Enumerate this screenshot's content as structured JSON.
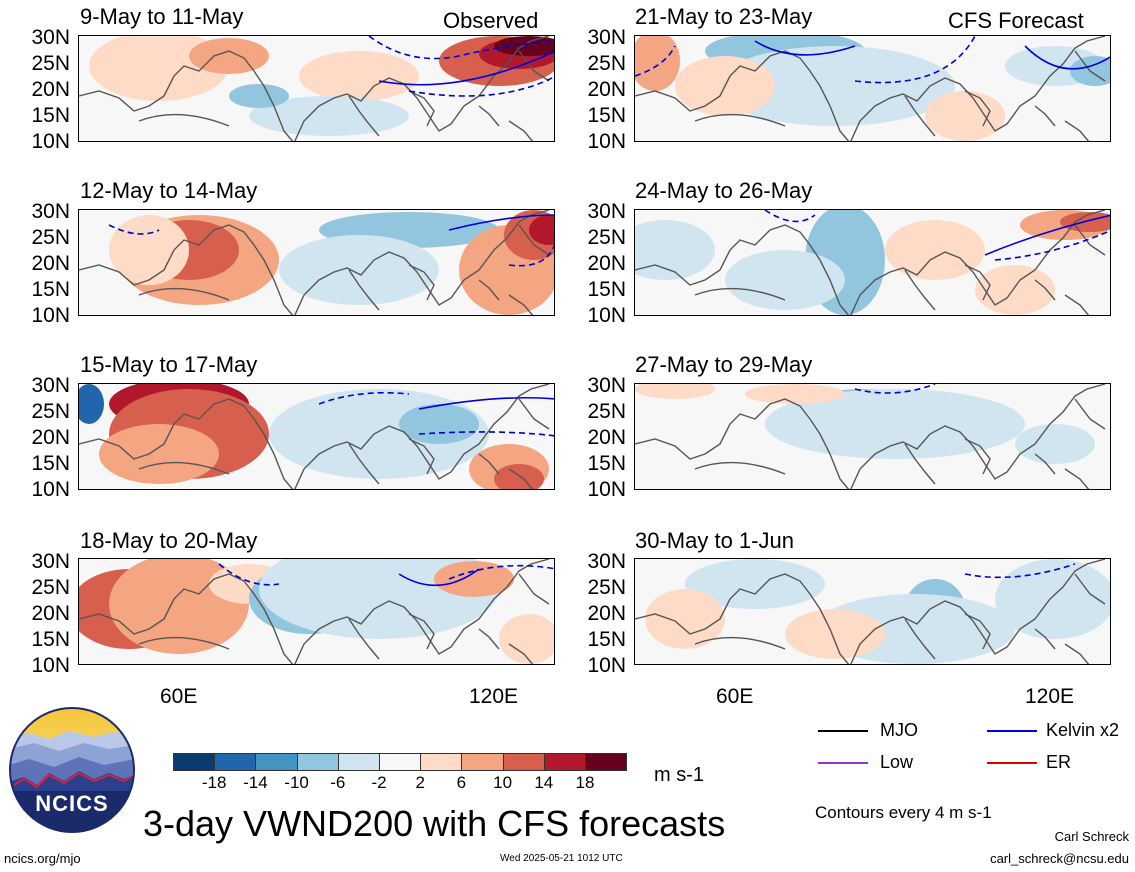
{
  "labels": {
    "observed": "Observed",
    "forecast": "CFS Forecast"
  },
  "lat_labels": [
    "30N",
    "25N",
    "20N",
    "15N",
    "10N"
  ],
  "lon_labels": [
    "60E",
    "120E"
  ],
  "panels": {
    "left": [
      {
        "title": "9-May to 11-May"
      },
      {
        "title": "12-May to 14-May"
      },
      {
        "title": "15-May to 17-May"
      },
      {
        "title": "18-May to 20-May"
      }
    ],
    "right": [
      {
        "title": "21-May to 23-May"
      },
      {
        "title": "24-May to 26-May"
      },
      {
        "title": "27-May to 29-May"
      },
      {
        "title": "30-May to 1-Jun"
      }
    ]
  },
  "colorbar": {
    "labels": [
      "-18",
      "-14",
      "-10",
      "-6",
      "-2",
      "2",
      "6",
      "10",
      "14",
      "18"
    ],
    "colors": [
      "#0a3a6e",
      "#2166ac",
      "#4393c3",
      "#92c5de",
      "#d1e5f0",
      "#f7f7f7",
      "#fddbc7",
      "#f4a582",
      "#d6604d",
      "#b2182b",
      "#67001f"
    ],
    "units": "m s-1"
  },
  "legend": {
    "items": [
      {
        "label": "MJO",
        "color": "#000000"
      },
      {
        "label": "Kelvin x2",
        "color": "#0000dd"
      },
      {
        "label": "Low",
        "color": "#9933cc"
      },
      {
        "label": "ER",
        "color": "#dd0000"
      }
    ],
    "contours_note": "Contours every 4 m s-1"
  },
  "footer": {
    "title": "3-day VWND200 with CFS forecasts",
    "logo_text": "NCICS",
    "url": "ncics.org/mjo",
    "timestamp": "Wed 2025-05-21 1012 UTC",
    "author": "Carl Schreck",
    "email": "carl_schreck@ncsu.edu"
  }
}
